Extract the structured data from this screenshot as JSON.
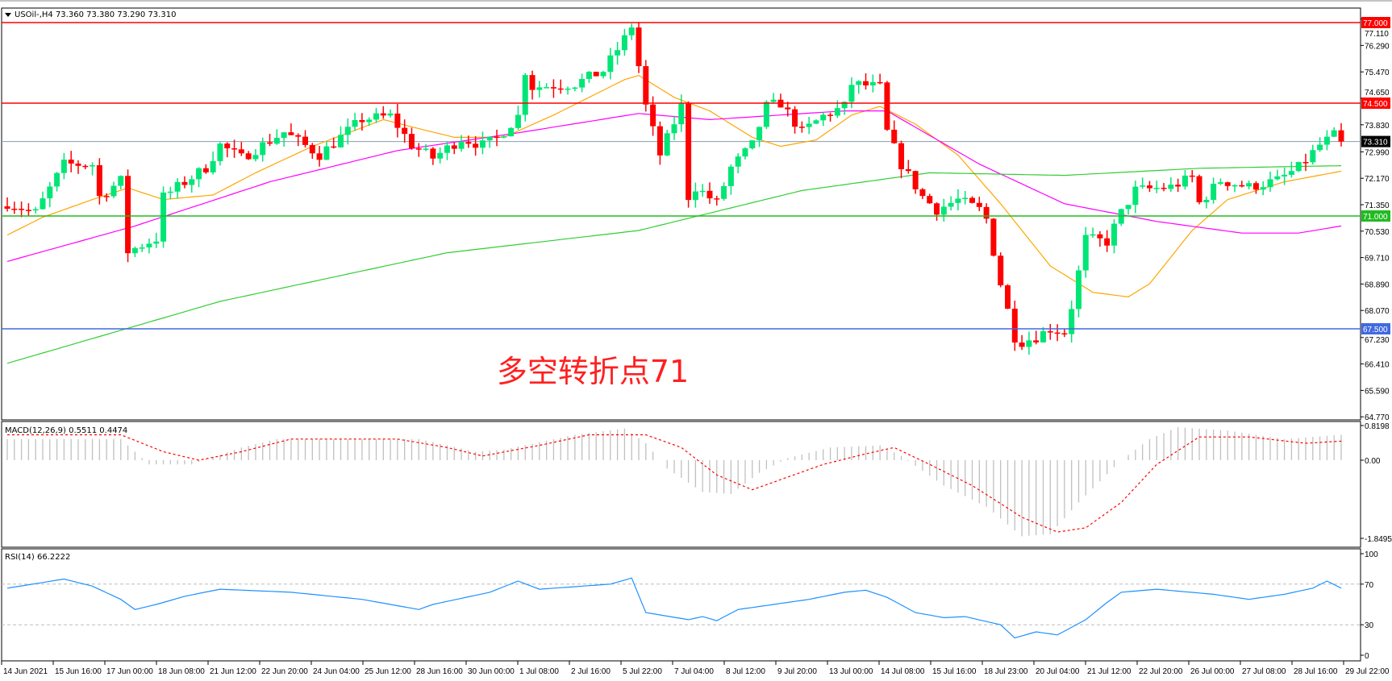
{
  "header": {
    "symbol_info": "USOil-,H4  73.360 73.380 73.290 73.310"
  },
  "annotation": {
    "text": "多空转折点71",
    "color": "#ff2020"
  },
  "colors": {
    "bull": "#00e676",
    "bear": "#ff0000",
    "ma_fast": "#ffa500",
    "ma_mid": "#ff00ff",
    "ma_slow": "#32cd32",
    "rsi": "#1e90ff",
    "macd_hist": "#c0c0c0",
    "macd_signal": "#ff0000"
  },
  "chart_data": [
    {
      "type": "candlestick",
      "title": "USOil-,H4",
      "bar_count": 189,
      "price_axis": {
        "min": 64.77,
        "max": 77.11,
        "ticks": [
          "77.110",
          "76.290",
          "75.470",
          "74.650",
          "73.830",
          "72.990",
          "72.170",
          "71.350",
          "70.530",
          "69.710",
          "68.890",
          "68.070",
          "67.230",
          "66.410",
          "65.590",
          "64.770"
        ]
      },
      "time_axis": [
        "14 Jun 2021",
        "15 Jun 16:00",
        "17 Jun 00:00",
        "18 Jun 08:00",
        "21 Jun 12:00",
        "22 Jun 20:00",
        "24 Jun 04:00",
        "25 Jun 12:00",
        "28 Jun 16:00",
        "30 Jun 00:00",
        "1 Jul 08:00",
        "2 Jul 16:00",
        "5 Jul 22:00",
        "7 Jul 04:00",
        "8 Jul 12:00",
        "9 Jul 20:00",
        "13 Jul 00:00",
        "14 Jul 08:00",
        "15 Jul 16:00",
        "18 Jul 23:00",
        "20 Jul 04:00",
        "21 Jul 12:00",
        "22 Jul 20:00",
        "26 Jul 00:00",
        "27 Jul 08:00",
        "28 Jul 16:00",
        "29 Jul 22:00"
      ],
      "close_path": [
        [
          0,
          71.4
        ],
        [
          4,
          71.1
        ],
        [
          8,
          72.6
        ],
        [
          12,
          72.6
        ],
        [
          13,
          71.6
        ],
        [
          16,
          72.1
        ],
        [
          17,
          69.9
        ],
        [
          21,
          70.3
        ],
        [
          22,
          71.6
        ],
        [
          28,
          72.5
        ],
        [
          30,
          73.2
        ],
        [
          33,
          72.8
        ],
        [
          39,
          73.6
        ],
        [
          44,
          72.9
        ],
        [
          50,
          74.0
        ],
        [
          54,
          74.1
        ],
        [
          57,
          73.2
        ],
        [
          60,
          72.8
        ],
        [
          64,
          73.4
        ],
        [
          67,
          73.2
        ],
        [
          69,
          73.4
        ],
        [
          72,
          74.1
        ],
        [
          73,
          75.5
        ],
        [
          74,
          75.0
        ],
        [
          80,
          75.1
        ],
        [
          84,
          75.5
        ],
        [
          87,
          76.5
        ],
        [
          88,
          76.9
        ],
        [
          90,
          74.4
        ],
        [
          92,
          72.9
        ],
        [
          95,
          74.4
        ],
        [
          96,
          71.6
        ],
        [
          97,
          71.9
        ],
        [
          100,
          71.4
        ],
        [
          102,
          72.5
        ],
        [
          105,
          73.2
        ],
        [
          107,
          74.4
        ],
        [
          109,
          74.5
        ],
        [
          112,
          73.6
        ],
        [
          115,
          74.1
        ],
        [
          118,
          74.4
        ],
        [
          119,
          75.1
        ],
        [
          123,
          75.0
        ],
        [
          124,
          73.6
        ],
        [
          126,
          72.6
        ],
        [
          129,
          71.6
        ],
        [
          131,
          71.2
        ],
        [
          134,
          71.5
        ],
        [
          137,
          71.2
        ],
        [
          138,
          70.9
        ],
        [
          140,
          68.9
        ],
        [
          142,
          67.25
        ],
        [
          143,
          67.1
        ],
        [
          145,
          67.25
        ],
        [
          147,
          67.5
        ],
        [
          149,
          67.4
        ],
        [
          150,
          68.2
        ],
        [
          152,
          70.3
        ],
        [
          155,
          70.2
        ],
        [
          157,
          71.1
        ],
        [
          159,
          71.8
        ],
        [
          164,
          71.9
        ],
        [
          167,
          72.2
        ],
        [
          168,
          71.4
        ],
        [
          171,
          72.1
        ],
        [
          175,
          71.9
        ],
        [
          179,
          72.1
        ],
        [
          182,
          72.5
        ],
        [
          185,
          73.2
        ],
        [
          187,
          73.5
        ],
        [
          188,
          73.31
        ]
      ],
      "moving_averages": [
        {
          "color": "#ffa500",
          "path": [
            [
              0,
              70.41
            ],
            [
              5,
              70.96
            ],
            [
              12,
              71.51
            ],
            [
              17,
              71.87
            ],
            [
              22,
              71.51
            ],
            [
              29,
              71.65
            ],
            [
              35,
              72.34
            ],
            [
              43,
              73.16
            ],
            [
              53,
              73.99
            ],
            [
              58,
              73.71
            ],
            [
              63,
              73.44
            ],
            [
              70,
              73.44
            ],
            [
              77,
              74.13
            ],
            [
              87,
              75.23
            ],
            [
              89,
              75.36
            ],
            [
              94,
              74.68
            ],
            [
              99,
              74.26
            ],
            [
              105,
              73.44
            ],
            [
              109,
              73.16
            ],
            [
              114,
              73.36
            ],
            [
              119,
              74.13
            ],
            [
              123,
              74.4
            ],
            [
              128,
              73.85
            ],
            [
              134,
              72.89
            ],
            [
              140,
              71.38
            ],
            [
              147,
              69.45
            ],
            [
              153,
              68.63
            ],
            [
              158,
              68.49
            ],
            [
              161,
              68.9
            ],
            [
              167,
              70.55
            ],
            [
              172,
              71.51
            ],
            [
              180,
              72.06
            ],
            [
              188,
              72.39
            ]
          ]
        },
        {
          "color": "#ff00ff",
          "path": [
            [
              0,
              69.59
            ],
            [
              18,
              70.69
            ],
            [
              37,
              72.06
            ],
            [
              55,
              73.03
            ],
            [
              72,
              73.58
            ],
            [
              89,
              74.18
            ],
            [
              99,
              73.99
            ],
            [
              118,
              74.26
            ],
            [
              124,
              74.26
            ],
            [
              137,
              72.61
            ],
            [
              149,
              71.38
            ],
            [
              162,
              70.83
            ],
            [
              174,
              70.47
            ],
            [
              182,
              70.47
            ],
            [
              188,
              70.69
            ]
          ]
        },
        {
          "color": "#32cd32",
          "path": [
            [
              0,
              66.43
            ],
            [
              30,
              68.35
            ],
            [
              62,
              69.86
            ],
            [
              89,
              70.55
            ],
            [
              112,
              71.79
            ],
            [
              130,
              72.34
            ],
            [
              149,
              72.26
            ],
            [
              168,
              72.48
            ],
            [
              188,
              72.56
            ]
          ]
        }
      ],
      "levels": [
        {
          "price": 77.0,
          "label": "77.000",
          "color": "#ff0000"
        },
        {
          "price": 74.5,
          "label": "74.500",
          "color": "#ff0000"
        },
        {
          "price": 71.0,
          "label": "71.000",
          "color": "#22bb22"
        },
        {
          "price": 67.5,
          "label": "67.500",
          "color": "#4169e1"
        }
      ],
      "current_price": {
        "price": 73.31,
        "label": "73.310"
      }
    },
    {
      "type": "bar",
      "title": "MACD(12,26,9) 0.5511 0.4474",
      "ylim": [
        -1.8495,
        0.8198
      ],
      "ticks": [
        "0.8198",
        "0.00",
        "-1.8495"
      ],
      "histogram_path": [
        [
          0,
          0.5
        ],
        [
          16,
          0.5
        ],
        [
          20,
          -0.1
        ],
        [
          26,
          -0.1
        ],
        [
          33,
          0.3
        ],
        [
          38,
          0.5
        ],
        [
          58,
          0.5
        ],
        [
          66,
          0.2
        ],
        [
          70,
          0.25
        ],
        [
          80,
          0.6
        ],
        [
          87,
          0.75
        ],
        [
          90,
          0.4
        ],
        [
          93,
          -0.2
        ],
        [
          98,
          -0.75
        ],
        [
          102,
          -0.8
        ],
        [
          106,
          -0.3
        ],
        [
          110,
          0.05
        ],
        [
          116,
          0.3
        ],
        [
          123,
          0.35
        ],
        [
          126,
          0.1
        ],
        [
          132,
          -0.6
        ],
        [
          138,
          -1.1
        ],
        [
          143,
          -1.8
        ],
        [
          147,
          -1.75
        ],
        [
          151,
          -1.0
        ],
        [
          157,
          0.0
        ],
        [
          161,
          0.5
        ],
        [
          165,
          0.78
        ],
        [
          172,
          0.7
        ],
        [
          180,
          0.5
        ],
        [
          188,
          0.6
        ]
      ],
      "signal_path": [
        [
          0,
          0.6
        ],
        [
          16,
          0.6
        ],
        [
          22,
          0.2
        ],
        [
          27,
          0.0
        ],
        [
          33,
          0.2
        ],
        [
          40,
          0.5
        ],
        [
          55,
          0.5
        ],
        [
          62,
          0.3
        ],
        [
          67,
          0.1
        ],
        [
          75,
          0.35
        ],
        [
          82,
          0.6
        ],
        [
          90,
          0.6
        ],
        [
          95,
          0.3
        ],
        [
          100,
          -0.35
        ],
        [
          105,
          -0.7
        ],
        [
          110,
          -0.4
        ],
        [
          115,
          -0.1
        ],
        [
          121,
          0.15
        ],
        [
          125,
          0.3
        ],
        [
          130,
          -0.1
        ],
        [
          136,
          -0.6
        ],
        [
          143,
          -1.35
        ],
        [
          148,
          -1.7
        ],
        [
          152,
          -1.6
        ],
        [
          157,
          -1.0
        ],
        [
          162,
          -0.1
        ],
        [
          168,
          0.55
        ],
        [
          175,
          0.55
        ],
        [
          183,
          0.4
        ],
        [
          188,
          0.45
        ]
      ]
    },
    {
      "type": "line",
      "title": "RSI(14) 66.2222",
      "ylim": [
        0,
        100
      ],
      "ticks": [
        "100",
        "70",
        "30",
        "0"
      ],
      "levels": [
        70,
        30
      ],
      "path": [
        [
          0,
          66
        ],
        [
          8,
          75
        ],
        [
          12,
          68
        ],
        [
          16,
          55
        ],
        [
          18,
          45
        ],
        [
          21,
          50
        ],
        [
          25,
          58
        ],
        [
          30,
          65
        ],
        [
          40,
          62
        ],
        [
          50,
          55
        ],
        [
          58,
          45
        ],
        [
          60,
          50
        ],
        [
          68,
          62
        ],
        [
          72,
          73
        ],
        [
          75,
          65
        ],
        [
          85,
          70
        ],
        [
          88,
          76
        ],
        [
          90,
          42
        ],
        [
          96,
          35
        ],
        [
          98,
          38
        ],
        [
          100,
          34
        ],
        [
          103,
          45
        ],
        [
          110,
          52
        ],
        [
          113,
          55
        ],
        [
          118,
          62
        ],
        [
          121,
          64
        ],
        [
          124,
          57
        ],
        [
          128,
          42
        ],
        [
          132,
          37
        ],
        [
          135,
          38
        ],
        [
          140,
          30
        ],
        [
          142,
          17
        ],
        [
          145,
          23
        ],
        [
          148,
          20
        ],
        [
          152,
          35
        ],
        [
          155,
          52
        ],
        [
          157,
          62
        ],
        [
          162,
          65
        ],
        [
          170,
          60
        ],
        [
          175,
          55
        ],
        [
          180,
          60
        ],
        [
          184,
          66
        ],
        [
          186,
          73
        ],
        [
          188,
          66
        ]
      ]
    }
  ]
}
